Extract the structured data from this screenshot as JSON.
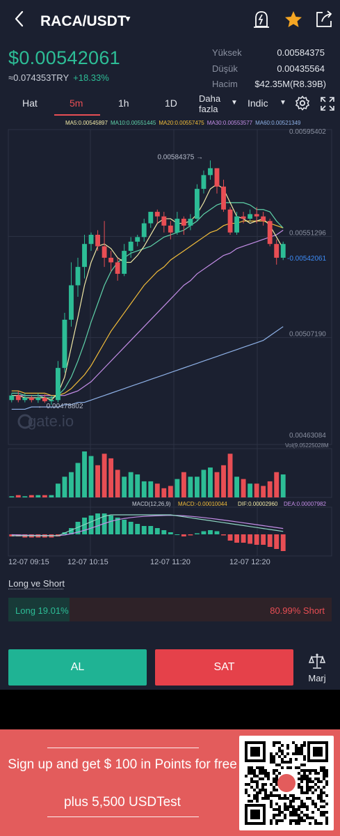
{
  "header": {
    "pair": "RACA/USDT",
    "icons": [
      "back-icon",
      "alert-bell-icon",
      "favorite-star-icon",
      "share-icon"
    ]
  },
  "ticker": {
    "price": "$0.00542061",
    "approx_try": "≈0.074353TRY",
    "change": "+18.33%",
    "high_label": "Yüksek",
    "high_value": "0.00584375",
    "low_label": "Düşük",
    "low_value": "0.00435564",
    "volume_label": "Hacim",
    "volume_value": "$42.35M(R8.39B)"
  },
  "tabs": {
    "items": [
      "Hat",
      "5m",
      "1h",
      "1D"
    ],
    "active": "5m",
    "more_line1": "Daha",
    "more_line2": "fazla",
    "indic": "Indic"
  },
  "ma_legend": [
    {
      "text": "MA5:0.00545897",
      "color": "#f1e9a6"
    },
    {
      "text": "MA10:0.00551445",
      "color": "#5fd2a9"
    },
    {
      "text": "MA20:0.00557475",
      "color": "#f2bd3a"
    },
    {
      "text": "MA30:0.00553577",
      "color": "#c58ee8"
    },
    {
      "text": "MA60:0.00521349",
      "color": "#8fb2e8"
    }
  ],
  "colors": {
    "up": "#2dbd96",
    "down": "#e84e54",
    "background": "#1b2030",
    "grid": "#2c3244"
  },
  "chart_data": {
    "type": "candlestick",
    "price_axis_labels": [
      "0.00595402",
      "0.00551296",
      "0.00507190",
      "0.00463084"
    ],
    "last_price_label": "-0.00542061",
    "high_marker": "0.00584375",
    "low_marker": "0.00478802",
    "watermark": "gate.io",
    "ylim": [
      0.00463084,
      0.00595402
    ],
    "candles": [
      [
        0.0048,
        0.00482,
        0.00479,
        0.00483
      ],
      [
        0.00482,
        0.0048,
        0.00479,
        0.00484
      ],
      [
        0.0048,
        0.00481,
        0.00479,
        0.00483
      ],
      [
        0.00481,
        0.0048,
        0.00479,
        0.00482
      ],
      [
        0.0048,
        0.00481,
        0.004788,
        0.00483
      ],
      [
        0.00481,
        0.004795,
        0.004788,
        0.004825
      ],
      [
        0.004795,
        0.0048,
        0.00478,
        0.00482
      ],
      [
        0.0048,
        0.00494,
        0.00479,
        0.00497
      ],
      [
        0.00494,
        0.00515,
        0.00492,
        0.00518
      ],
      [
        0.00515,
        0.0053,
        0.00512,
        0.0054
      ],
      [
        0.0053,
        0.00538,
        0.00525,
        0.00542
      ],
      [
        0.00538,
        0.00548,
        0.00533,
        0.00552
      ],
      [
        0.00548,
        0.00552,
        0.00545,
        0.00553
      ],
      [
        0.00552,
        0.00547,
        0.00545,
        0.00554
      ],
      [
        0.00547,
        0.00542,
        0.00538,
        0.00558
      ],
      [
        0.00542,
        0.0054,
        0.00536,
        0.00545
      ],
      [
        0.0054,
        0.00535,
        0.00532,
        0.00542
      ],
      [
        0.00535,
        0.00545,
        0.00534,
        0.00548
      ],
      [
        0.00545,
        0.00549,
        0.00542,
        0.00551
      ],
      [
        0.00549,
        0.00551,
        0.00547,
        0.00552
      ],
      [
        0.00551,
        0.00557,
        0.00549,
        0.00559
      ],
      [
        0.00557,
        0.00562,
        0.00555,
        0.00562
      ],
      [
        0.00562,
        0.0056,
        0.00557,
        0.00563
      ],
      [
        0.0056,
        0.00556,
        0.00553,
        0.00562
      ],
      [
        0.00556,
        0.00553,
        0.0055,
        0.00558
      ],
      [
        0.00553,
        0.00559,
        0.00552,
        0.00562
      ],
      [
        0.00559,
        0.00556,
        0.00552,
        0.0056
      ],
      [
        0.00556,
        0.00559,
        0.00554,
        0.00561
      ],
      [
        0.00559,
        0.00572,
        0.00558,
        0.00574
      ],
      [
        0.00572,
        0.00578,
        0.0057,
        0.0058
      ],
      [
        0.00578,
        0.00581,
        0.00576,
        0.005844
      ],
      [
        0.00581,
        0.00573,
        0.0057,
        0.00581
      ],
      [
        0.00573,
        0.00563,
        0.00562,
        0.00576
      ],
      [
        0.00563,
        0.00553,
        0.00552,
        0.00564
      ],
      [
        0.00553,
        0.0056,
        0.00552,
        0.00562
      ],
      [
        0.0056,
        0.00559,
        0.00557,
        0.00562
      ],
      [
        0.00559,
        0.00561,
        0.00558,
        0.00563
      ],
      [
        0.00561,
        0.0056,
        0.00557,
        0.00564
      ],
      [
        0.0056,
        0.00558,
        0.00556,
        0.00562
      ],
      [
        0.00558,
        0.00548,
        0.00547,
        0.00559
      ],
      [
        0.00548,
        0.00542,
        0.00539,
        0.0055
      ],
      [
        0.00542,
        0.00548,
        0.00541,
        0.00549
      ]
    ],
    "ma5": [
      0.00482,
      0.00482,
      0.00481,
      0.00481,
      0.00481,
      0.00481,
      0.0048,
      0.00483,
      0.0049,
      0.00503,
      0.00516,
      0.0053,
      0.0054,
      0.00547,
      0.00548,
      0.00546,
      0.00542,
      0.0054,
      0.0054,
      0.00543,
      0.00547,
      0.00552,
      0.00557,
      0.00559,
      0.00559,
      0.00557,
      0.00557,
      0.00558,
      0.00561,
      0.00566,
      0.00572,
      0.00574,
      0.00572,
      0.00566,
      0.0056,
      0.00559,
      0.00557,
      0.00558,
      0.00559,
      0.00556,
      0.00551,
      0.00546
    ],
    "ma10": [
      0.00483,
      0.00483,
      0.00482,
      0.00482,
      0.00482,
      0.00481,
      0.00481,
      0.00482,
      0.00485,
      0.0049,
      0.00497,
      0.00505,
      0.00514,
      0.00522,
      0.0053,
      0.00536,
      0.0054,
      0.00542,
      0.00544,
      0.00545,
      0.00546,
      0.00547,
      0.00549,
      0.00551,
      0.00552,
      0.00553,
      0.00554,
      0.00556,
      0.00558,
      0.00561,
      0.00563,
      0.00565,
      0.00566,
      0.00566,
      0.00566,
      0.00566,
      0.00565,
      0.00563,
      0.00563,
      0.00562,
      0.00558,
      0.00555
    ],
    "ma20": [
      0.00484,
      0.00484,
      0.00483,
      0.00483,
      0.00483,
      0.00483,
      0.00482,
      0.00482,
      0.00483,
      0.00485,
      0.00488,
      0.00491,
      0.00495,
      0.005,
      0.00505,
      0.0051,
      0.00514,
      0.00518,
      0.00522,
      0.00526,
      0.0053,
      0.00533,
      0.00536,
      0.00538,
      0.00541,
      0.00543,
      0.00545,
      0.00547,
      0.00549,
      0.00551,
      0.00553,
      0.00554,
      0.00556,
      0.00557,
      0.00557,
      0.00558,
      0.00558,
      0.00558,
      0.00558,
      0.00557,
      0.00556,
      0.00555
    ],
    "ma30": [
      0.00482,
      0.00482,
      0.00482,
      0.00482,
      0.00482,
      0.00482,
      0.00482,
      0.00482,
      0.00482,
      0.00483,
      0.00484,
      0.00486,
      0.00488,
      0.00491,
      0.00494,
      0.00497,
      0.005,
      0.00503,
      0.00506,
      0.00509,
      0.00512,
      0.00515,
      0.00518,
      0.00521,
      0.00524,
      0.00527,
      0.0053,
      0.00532,
      0.00535,
      0.00537,
      0.00539,
      0.00541,
      0.00543,
      0.00544,
      0.00546,
      0.00547,
      0.00548,
      0.00549,
      0.0055,
      0.00551,
      0.00552,
      0.00554
    ],
    "ma60": [
      0.00476,
      0.00476,
      0.00476,
      0.00477,
      0.00477,
      0.00477,
      0.00477,
      0.00477,
      0.00478,
      0.00478,
      0.00479,
      0.00479,
      0.0048,
      0.00481,
      0.00482,
      0.00483,
      0.00484,
      0.00485,
      0.00486,
      0.00487,
      0.00488,
      0.00489,
      0.0049,
      0.00491,
      0.00492,
      0.00493,
      0.00494,
      0.00495,
      0.00496,
      0.00497,
      0.00498,
      0.00499,
      0.005,
      0.00501,
      0.00502,
      0.00503,
      0.00504,
      0.00505,
      0.00506,
      0.00508,
      0.0051,
      0.00512
    ],
    "volume_label": "Vol(9.05225028M",
    "volume": [
      1,
      2,
      1,
      2,
      2,
      2,
      2,
      12,
      18,
      22,
      30,
      40,
      36,
      28,
      38,
      34,
      24,
      18,
      22,
      20,
      14,
      14,
      12,
      8,
      10,
      16,
      22,
      18,
      18,
      24,
      26,
      22,
      28,
      38,
      18,
      16,
      12,
      12,
      10,
      14,
      22,
      20
    ],
    "macd_labels": {
      "macd_params": "MACD(12,26,9)",
      "macd": "MACD:-0.00010044",
      "dif": "DIF:0.00002960",
      "dea": "DEA:0.00007982"
    },
    "macd_hist": [
      -2,
      -2,
      -3,
      -3,
      -3,
      -3,
      -3,
      -2,
      2,
      6,
      12,
      16,
      18,
      20,
      20,
      18,
      16,
      14,
      12,
      10,
      8,
      8,
      6,
      4,
      2,
      0,
      -2,
      -1,
      1,
      3,
      4,
      3,
      -1,
      -6,
      -8,
      -8,
      -9,
      -10,
      -10,
      -12,
      -14,
      -16
    ],
    "time_labels": [
      "12-07 09:15",
      "12-07 10:15",
      "12-07 11:20",
      "12-07 12:20"
    ]
  },
  "long_short": {
    "title": "Long ve Short",
    "long_text": "Long 19.01%",
    "short_text": "80.99% Short",
    "long_fraction": 0.1901
  },
  "actions": {
    "buy": "AL",
    "sell": "SAT",
    "margin": "Marj"
  },
  "promo": {
    "line1": "Sign up and get $ 100 in Points for free",
    "line2": "plus 5,500 USDTest"
  }
}
